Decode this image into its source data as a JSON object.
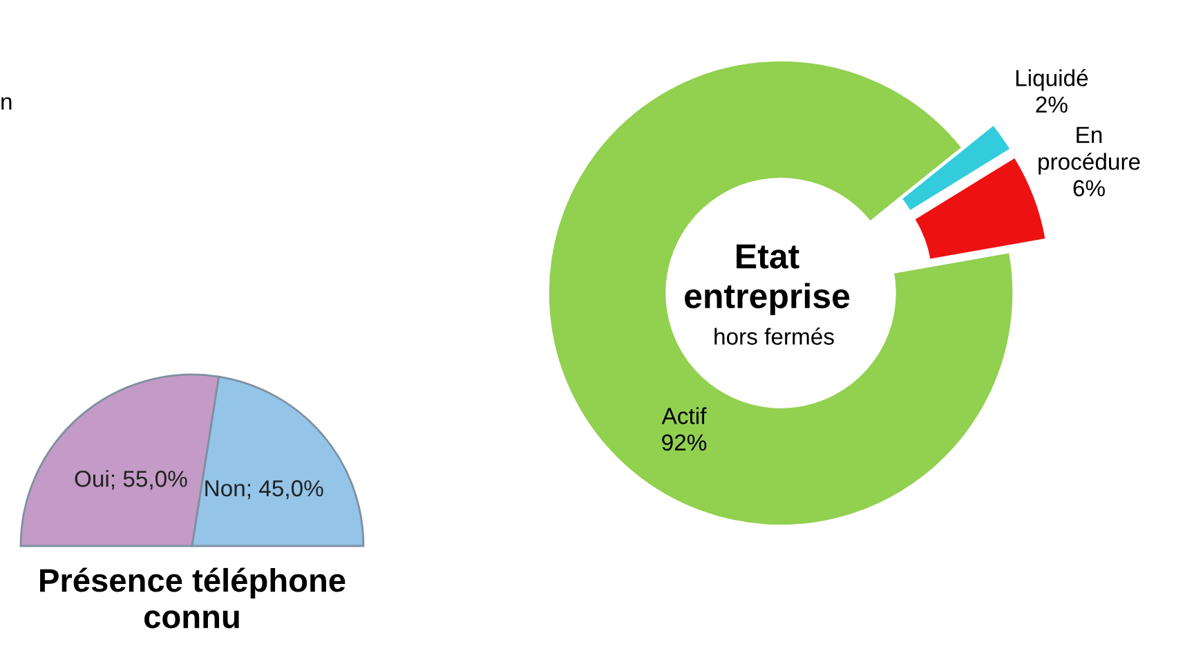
{
  "chart_data": [
    {
      "type": "pie",
      "title": "Présence téléphone connu",
      "categories": [
        "Oui",
        "Non"
      ],
      "values": [
        55.0,
        45.0
      ],
      "value_labels": [
        "55,0%",
        "45,0%"
      ],
      "colors": [
        "#c39bc6",
        "#94c4e8"
      ],
      "annotations": [
        "n"
      ]
    },
    {
      "type": "donut",
      "title": "Etat entreprise",
      "subtitle": "hors fermés",
      "categories": [
        "Actif",
        "Liquidé",
        "En procédure"
      ],
      "values": [
        92,
        2,
        6
      ],
      "value_labels": [
        "92%",
        "2%",
        "6%"
      ],
      "colors": [
        "#92d050",
        "#33ccdd",
        "#ee1111"
      ]
    }
  ]
}
